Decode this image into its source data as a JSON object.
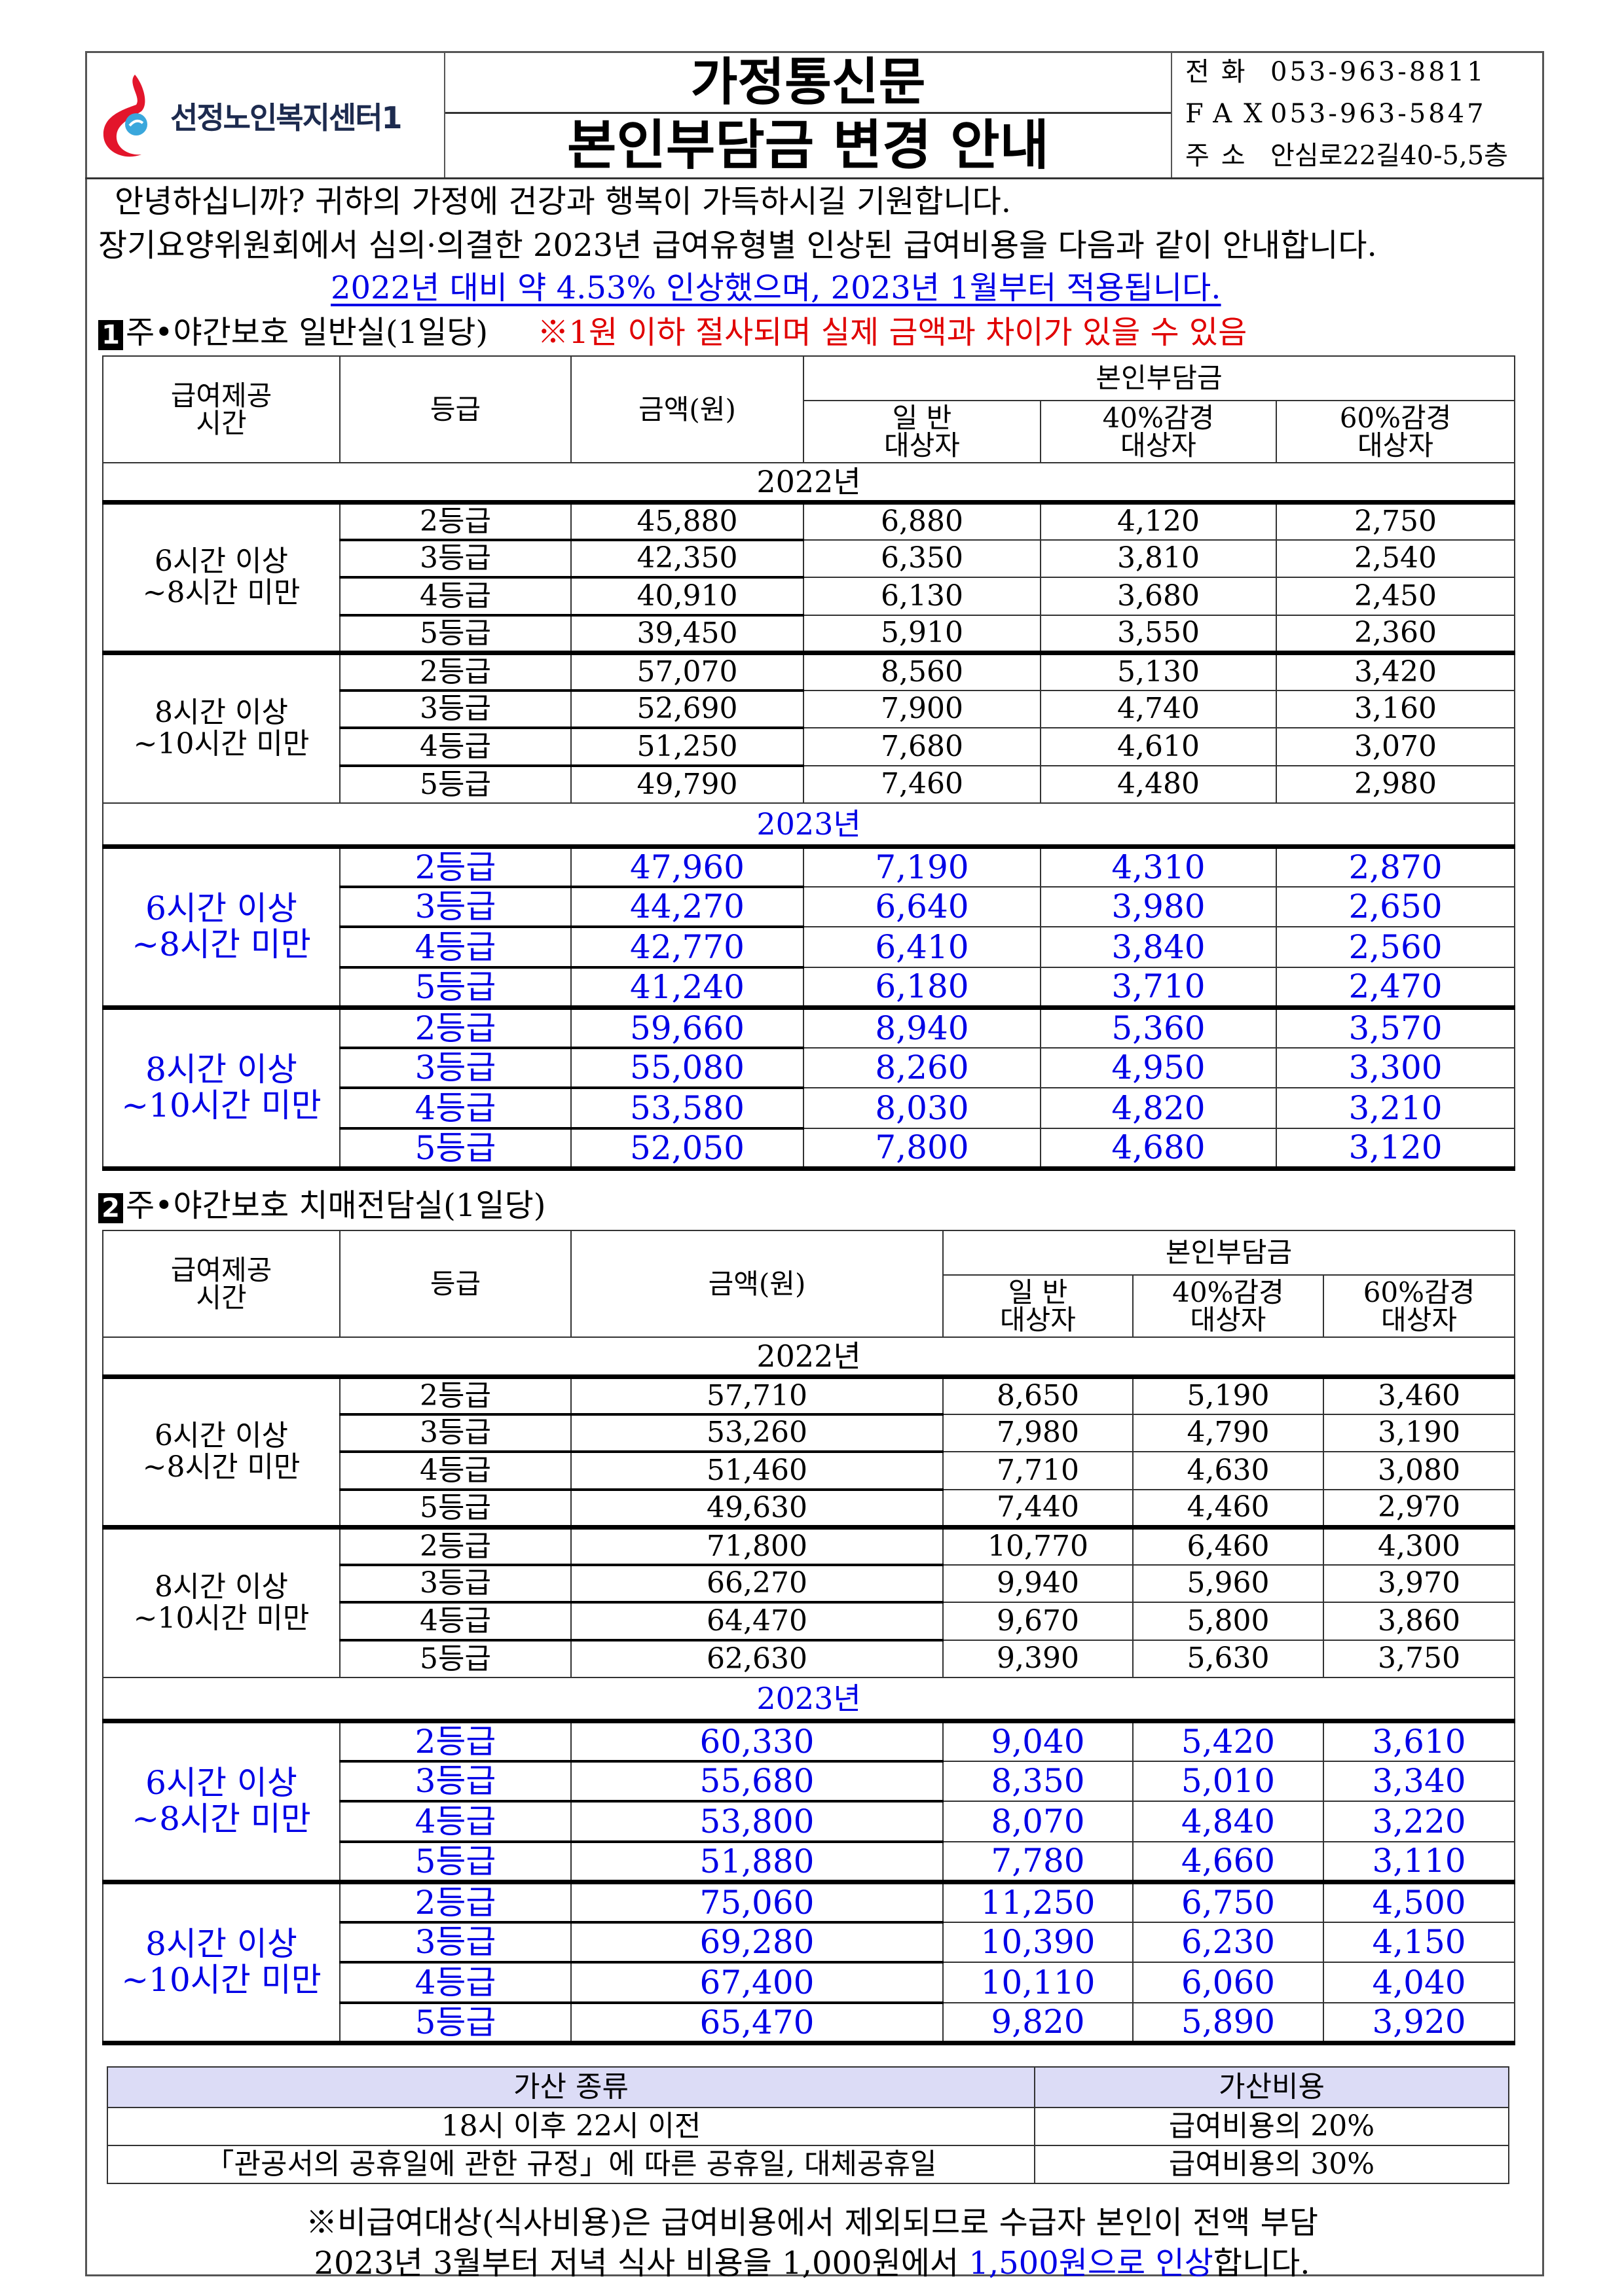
{
  "header": {
    "org_name": "선정노인복지센터1",
    "title_line1": "가정통신문",
    "title_line2": "본인부담금 변경 안내",
    "contact": [
      {
        "label": "전화",
        "value": "053-963-8811"
      },
      {
        "label": "FAX",
        "value": "053-963-5847"
      },
      {
        "label": "주소",
        "value": "안심로22길40-5,5층"
      }
    ]
  },
  "intro": {
    "greeting": "안녕하십니까? 귀하의 가정에 건강과 행복이 가득하시길 기원합니다.",
    "line2": "장기요양위원회에서 심의·의결한 2023년 급여유형별 인상된 급여비용을 다음과 같이 안내합니다.",
    "highlight": "2022년 대비 약 4.53% 인상했으며, 2023년 1월부터 적용됩니다."
  },
  "colors": {
    "accent_blue": "#0000e6",
    "notice_red": "#e00000",
    "surcharge_header_bg": "#dcdcf6"
  },
  "tables": [
    {
      "number": "1",
      "title": "주•야간보호 일반실(1일당)",
      "notice": "※1원 이하 절사되며 실제 금액과 차이가 있을 수 있음",
      "headers": {
        "time": "급여제공\n시간",
        "grade": "등급",
        "amount": "금액(원)",
        "copay": "본인부담금",
        "general": "일 반\n대상자",
        "r40": "40%감경\n대상자",
        "r60": "60%감경\n대상자"
      },
      "years": [
        {
          "year": "2022년",
          "groups": [
            {
              "time": "6시간 이상\n~8시간 미만",
              "rows": [
                [
                  "2등급",
                  "45,880",
                  "6,880",
                  "4,120",
                  "2,750"
                ],
                [
                  "3등급",
                  "42,350",
                  "6,350",
                  "3,810",
                  "2,540"
                ],
                [
                  "4등급",
                  "40,910",
                  "6,130",
                  "3,680",
                  "2,450"
                ],
                [
                  "5등급",
                  "39,450",
                  "5,910",
                  "3,550",
                  "2,360"
                ]
              ]
            },
            {
              "time": "8시간 이상\n~10시간 미만",
              "rows": [
                [
                  "2등급",
                  "57,070",
                  "8,560",
                  "5,130",
                  "3,420"
                ],
                [
                  "3등급",
                  "52,690",
                  "7,900",
                  "4,740",
                  "3,160"
                ],
                [
                  "4등급",
                  "51,250",
                  "7,680",
                  "4,610",
                  "3,070"
                ],
                [
                  "5등급",
                  "49,790",
                  "7,460",
                  "4,480",
                  "2,980"
                ]
              ]
            }
          ]
        },
        {
          "year": "2023년",
          "groups": [
            {
              "time": "6시간 이상\n~8시간 미만",
              "rows": [
                [
                  "2등급",
                  "47,960",
                  "7,190",
                  "4,310",
                  "2,870"
                ],
                [
                  "3등급",
                  "44,270",
                  "6,640",
                  "3,980",
                  "2,650"
                ],
                [
                  "4등급",
                  "42,770",
                  "6,410",
                  "3,840",
                  "2,560"
                ],
                [
                  "5등급",
                  "41,240",
                  "6,180",
                  "3,710",
                  "2,470"
                ]
              ]
            },
            {
              "time": "8시간 이상\n~10시간 미만",
              "rows": [
                [
                  "2등급",
                  "59,660",
                  "8,940",
                  "5,360",
                  "3,570"
                ],
                [
                  "3등급",
                  "55,080",
                  "8,260",
                  "4,950",
                  "3,300"
                ],
                [
                  "4등급",
                  "53,580",
                  "8,030",
                  "4,820",
                  "3,210"
                ],
                [
                  "5등급",
                  "52,050",
                  "7,800",
                  "4,680",
                  "3,120"
                ]
              ]
            }
          ]
        }
      ]
    },
    {
      "number": "2",
      "title": "주•야간보호 치매전담실(1일당)",
      "notice": "",
      "headers": {
        "time": "급여제공\n시간",
        "grade": "등급",
        "amount": "금액(원)",
        "copay": "본인부담금",
        "general": "일 반\n대상자",
        "r40": "40%감경\n대상자",
        "r60": "60%감경\n대상자"
      },
      "years": [
        {
          "year": "2022년",
          "groups": [
            {
              "time": "6시간 이상\n~8시간 미만",
              "rows": [
                [
                  "2등급",
                  "57,710",
                  "8,650",
                  "5,190",
                  "3,460"
                ],
                [
                  "3등급",
                  "53,260",
                  "7,980",
                  "4,790",
                  "3,190"
                ],
                [
                  "4등급",
                  "51,460",
                  "7,710",
                  "4,630",
                  "3,080"
                ],
                [
                  "5등급",
                  "49,630",
                  "7,440",
                  "4,460",
                  "2,970"
                ]
              ]
            },
            {
              "time": "8시간 이상\n~10시간 미만",
              "rows": [
                [
                  "2등급",
                  "71,800",
                  "10,770",
                  "6,460",
                  "4,300"
                ],
                [
                  "3등급",
                  "66,270",
                  "9,940",
                  "5,960",
                  "3,970"
                ],
                [
                  "4등급",
                  "64,470",
                  "9,670",
                  "5,800",
                  "3,860"
                ],
                [
                  "5등급",
                  "62,630",
                  "9,390",
                  "5,630",
                  "3,750"
                ]
              ]
            }
          ]
        },
        {
          "year": "2023년",
          "groups": [
            {
              "time": "6시간 이상\n~8시간 미만",
              "rows": [
                [
                  "2등급",
                  "60,330",
                  "9,040",
                  "5,420",
                  "3,610"
                ],
                [
                  "3등급",
                  "55,680",
                  "8,350",
                  "5,010",
                  "3,340"
                ],
                [
                  "4등급",
                  "53,800",
                  "8,070",
                  "4,840",
                  "3,220"
                ],
                [
                  "5등급",
                  "51,880",
                  "7,780",
                  "4,660",
                  "3,110"
                ]
              ]
            },
            {
              "time": "8시간 이상\n~10시간 미만",
              "rows": [
                [
                  "2등급",
                  "75,060",
                  "11,250",
                  "6,750",
                  "4,500"
                ],
                [
                  "3등급",
                  "69,280",
                  "10,390",
                  "6,230",
                  "4,150"
                ],
                [
                  "4등급",
                  "67,400",
                  "10,110",
                  "6,060",
                  "4,040"
                ],
                [
                  "5등급",
                  "65,470",
                  "9,820",
                  "5,890",
                  "3,920"
                ]
              ]
            }
          ]
        }
      ]
    }
  ],
  "surcharge": {
    "headers": [
      "가산 종류",
      "가산비용"
    ],
    "rows": [
      [
        "18시 이후 22시 이전",
        "급여비용의 20%"
      ],
      [
        "「관공서의 공휴일에 관한 규정」에 따른 공휴일, 대체공휴일",
        "급여비용의 30%"
      ]
    ]
  },
  "footer": {
    "note1": "※비급여대상(식사비용)은 급여비용에서 제외되므로 수급자 본인이 전액 부담",
    "note2_prefix": "2023년 3월부터 저녁 식사 비용을 1,000원에서 ",
    "note2_highlight": "1,500원으로 인상",
    "note2_suffix": "합니다."
  }
}
